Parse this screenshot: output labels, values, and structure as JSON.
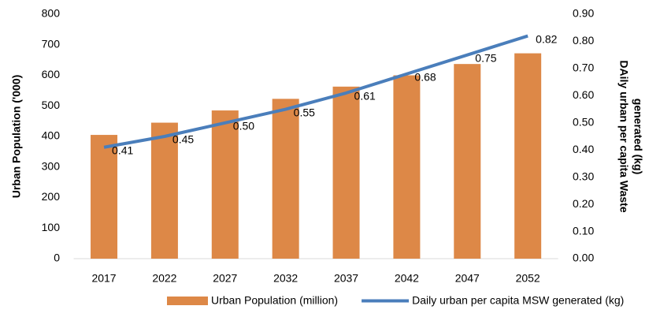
{
  "chart_data": {
    "type": "bar",
    "categories": [
      "2017",
      "2022",
      "2027",
      "2032",
      "2037",
      "2042",
      "2047",
      "2052"
    ],
    "ylabel": "Urban Population ('000)",
    "y2label": [
      "DAily urban per capita Waste",
      "generated (kg)"
    ],
    "ylim": [
      0,
      800
    ],
    "yticks": [
      0,
      100,
      200,
      300,
      400,
      500,
      600,
      700,
      800
    ],
    "y2lim": [
      0,
      0.9
    ],
    "y2ticks": [
      {
        "value": 0,
        "label": "0.00"
      },
      {
        "value": 0.1,
        "label": "0.10"
      },
      {
        "value": 0.2,
        "label": "0.20"
      },
      {
        "value": 0.3,
        "label": "0.30"
      },
      {
        "value": 0.4,
        "label": "0.40"
      },
      {
        "value": 0.5,
        "label": "0.50"
      },
      {
        "value": 0.6,
        "label": "0.60"
      },
      {
        "value": 0.7,
        "label": "0.70"
      },
      {
        "value": 0.8,
        "label": "0.80"
      },
      {
        "value": 0.9,
        "label": "0.90"
      }
    ],
    "series": [
      {
        "name": "Urban Population (million)",
        "type": "bar",
        "color": "#dd8847",
        "values": [
          405,
          445,
          485,
          523,
          563,
          600,
          637,
          672
        ]
      },
      {
        "name": "Daily urban per capita MSW generated (kg)",
        "type": "line",
        "axis": "y2",
        "color": "#4a7ebb",
        "values": [
          0.41,
          0.45,
          0.5,
          0.55,
          0.61,
          0.68,
          0.75,
          0.82
        ],
        "value_labels": [
          "0.41",
          "0.45",
          "0.50",
          "0.55",
          "0.61",
          "0.68",
          "0.75",
          "0.82"
        ]
      }
    ],
    "legend": "bottom"
  }
}
